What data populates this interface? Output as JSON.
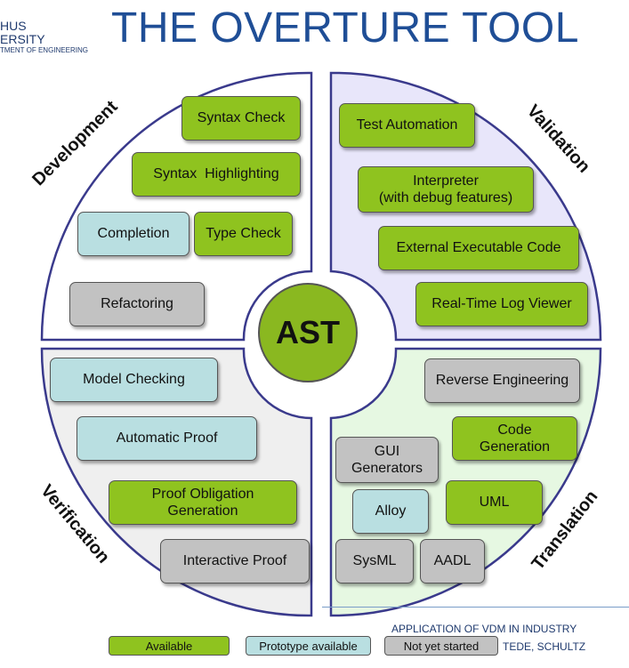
{
  "header": {
    "title": "THE OVERTURE TOOL",
    "logo_line1": "HUS",
    "logo_line2": "ERSITY",
    "logo_line3": "TMENT OF ENGINEERING"
  },
  "center": {
    "label": "AST"
  },
  "quadrants": {
    "development": {
      "label": "Development"
    },
    "validation": {
      "label": "Validation"
    },
    "verification": {
      "label": "Verification"
    },
    "translation": {
      "label": "Translation"
    }
  },
  "boxes": {
    "syntax_check": "Syntax Check",
    "syntax_highlighting": "Syntax  Highlighting",
    "completion": "Completion",
    "type_check": "Type Check",
    "refactoring": "Refactoring",
    "test_automation": "Test Automation",
    "interpreter_l1": "Interpreter",
    "interpreter_l2": "(with debug features)",
    "external_code": "External Executable Code",
    "rt_log_viewer": "Real-Time Log Viewer",
    "model_checking": "Model Checking",
    "automatic_proof": "Automatic Proof",
    "proof_obligation_l1": "Proof Obligation",
    "proof_obligation_l2": "Generation",
    "interactive_proof": "Interactive Proof",
    "reverse_engineering": "Reverse Engineering",
    "code_generation_l1": "Code",
    "code_generation_l2": "Generation",
    "gui_generators_l1": "GUI",
    "gui_generators_l2": "Generators",
    "alloy": "Alloy",
    "uml": "UML",
    "sysml": "SysML",
    "aadl": "AADL"
  },
  "legend": {
    "available": "Available",
    "prototype": "Prototype available",
    "not_started": "Not yet started"
  },
  "footer": {
    "line1": "APPLICATION OF VDM IN INDUSTRY",
    "line2": "TEDE, SCHULTZ"
  },
  "colors": {
    "available": "#8fc31f",
    "prototype": "#b9dfe1",
    "not_started": "#c2c2c2",
    "validation_bg": "#e8e6fa",
    "verification_bg": "#efefef",
    "translation_bg": "#e6f8e2",
    "outline": "#3a3a8c"
  }
}
